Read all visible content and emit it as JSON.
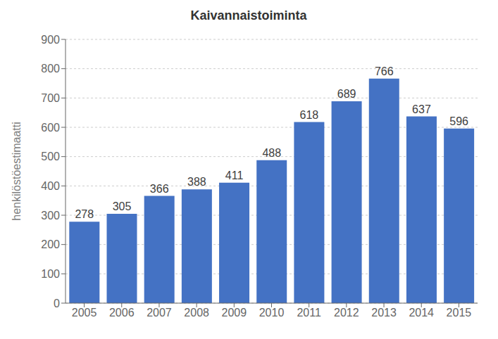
{
  "chart_data": {
    "type": "bar",
    "title": "Kaivannaistoiminta",
    "ylabel": "henkilöstöestimaatti",
    "categories": [
      "2005",
      "2006",
      "2007",
      "2008",
      "2009",
      "2010",
      "2011",
      "2012",
      "2013",
      "2014",
      "2015"
    ],
    "values": [
      278,
      305,
      366,
      388,
      411,
      488,
      618,
      689,
      766,
      637,
      596
    ],
    "color": "#4472C4",
    "ylim": [
      0,
      900
    ],
    "yticks": [
      0,
      100,
      200,
      300,
      400,
      500,
      600,
      700,
      800,
      900
    ],
    "grid": true,
    "data_labels": true
  }
}
